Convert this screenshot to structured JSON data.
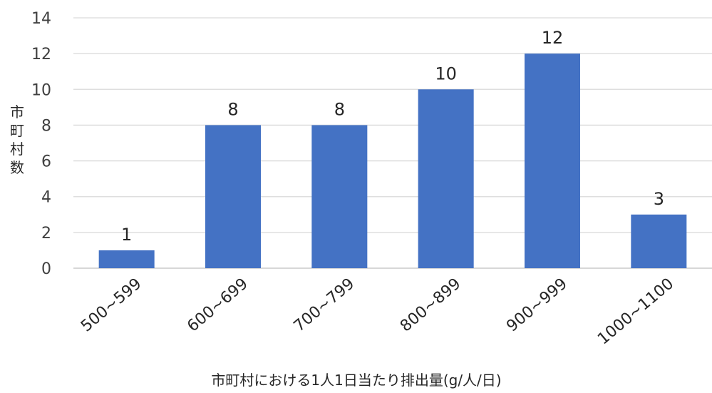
{
  "chart_data": {
    "type": "bar",
    "title": "",
    "xlabel": "市町村における1人1日当たり排出量(g/人/日)",
    "ylabel": "市町村数",
    "categories": [
      "500~599",
      "600~699",
      "700~799",
      "800~899",
      "900~999",
      "1000~1100"
    ],
    "series": [
      {
        "values": [
          1,
          8,
          8,
          10,
          12,
          3
        ]
      }
    ],
    "ylim": [
      0,
      14
    ],
    "yticks": [
      0,
      2,
      4,
      6,
      8,
      10,
      12,
      14
    ],
    "grid": true,
    "legend": "none",
    "bar_color": "#4472C4",
    "data_labels": true
  }
}
